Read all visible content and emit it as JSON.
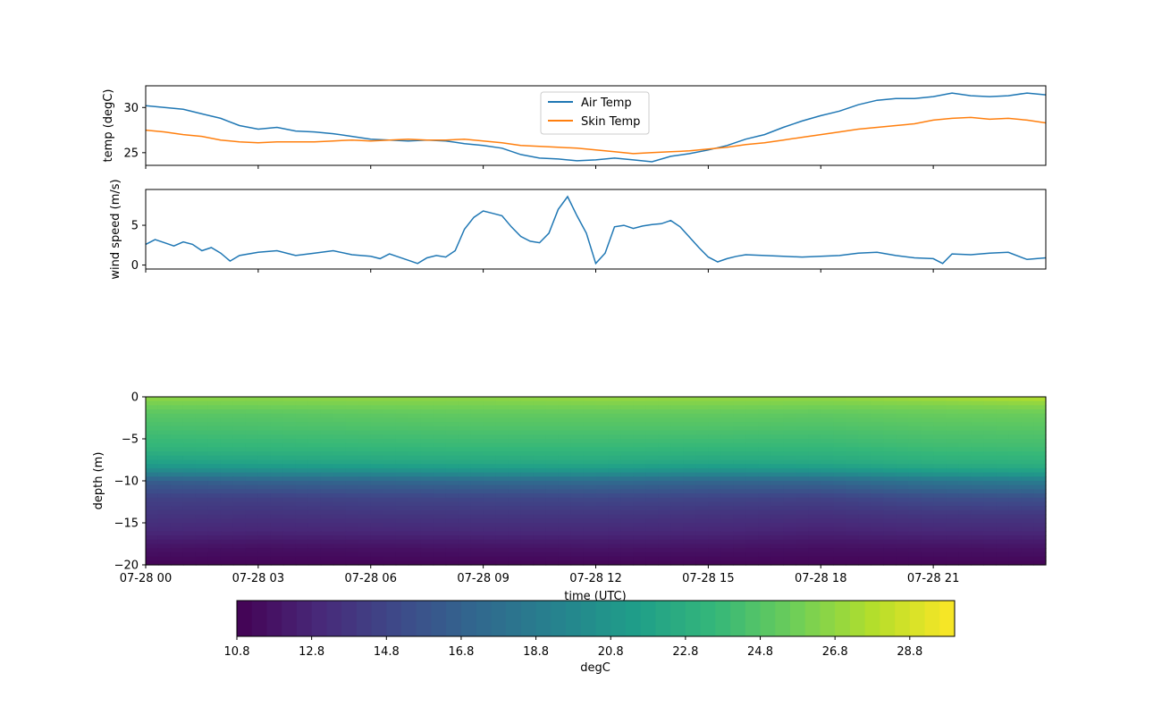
{
  "chart_data": [
    {
      "type": "line",
      "title": "",
      "xlabel": "",
      "ylabel": "temp (degC)",
      "xlim": [
        0,
        24
      ],
      "ylim": [
        23.6,
        32.4
      ],
      "yticks": [
        25,
        30
      ],
      "legend": {
        "placement": "top-center",
        "entries": [
          "Air Temp",
          "Skin Temp"
        ]
      },
      "series": [
        {
          "name": "Air Temp",
          "color": "#1f77b4",
          "x": [
            0,
            0.5,
            1,
            1.5,
            2,
            2.5,
            3,
            3.5,
            4,
            4.5,
            5,
            5.5,
            6,
            6.5,
            7,
            7.5,
            8,
            8.5,
            9,
            9.5,
            10,
            10.5,
            11,
            11.5,
            12,
            12.5,
            13,
            13.5,
            14,
            14.5,
            15,
            15.5,
            16,
            16.5,
            17,
            17.5,
            18,
            18.5,
            19,
            19.5,
            20,
            20.5,
            21,
            21.5,
            22,
            22.5,
            23,
            23.5,
            24
          ],
          "values": [
            30.2,
            30.0,
            29.8,
            29.3,
            28.8,
            28.0,
            27.6,
            27.8,
            27.4,
            27.3,
            27.1,
            26.8,
            26.5,
            26.4,
            26.3,
            26.4,
            26.3,
            26.0,
            25.8,
            25.5,
            24.8,
            24.4,
            24.3,
            24.1,
            24.2,
            24.4,
            24.2,
            24.0,
            24.6,
            24.9,
            25.3,
            25.8,
            26.5,
            27.0,
            27.8,
            28.5,
            29.1,
            29.6,
            30.3,
            30.8,
            31.0,
            31.0,
            31.2,
            31.6,
            31.3,
            31.2,
            31.3,
            31.6,
            31.4
          ]
        },
        {
          "name": "Skin Temp",
          "color": "#ff7f0e",
          "x": [
            0,
            0.5,
            1,
            1.5,
            2,
            2.5,
            3,
            3.5,
            4,
            4.5,
            5,
            5.5,
            6,
            6.5,
            7,
            7.5,
            8,
            8.5,
            9,
            9.5,
            10,
            10.5,
            11,
            11.5,
            12,
            12.5,
            13,
            13.5,
            14,
            14.5,
            15,
            15.5,
            16,
            16.5,
            17,
            17.5,
            18,
            18.5,
            19,
            19.5,
            20,
            20.5,
            21,
            21.5,
            22,
            22.5,
            23,
            23.5,
            24
          ],
          "values": [
            27.5,
            27.3,
            27.0,
            26.8,
            26.4,
            26.2,
            26.1,
            26.2,
            26.2,
            26.2,
            26.3,
            26.4,
            26.3,
            26.4,
            26.5,
            26.4,
            26.4,
            26.5,
            26.3,
            26.1,
            25.8,
            25.7,
            25.6,
            25.5,
            25.3,
            25.1,
            24.9,
            25.0,
            25.1,
            25.2,
            25.4,
            25.6,
            25.9,
            26.1,
            26.4,
            26.7,
            27.0,
            27.3,
            27.6,
            27.8,
            28.0,
            28.2,
            28.6,
            28.8,
            28.9,
            28.7,
            28.8,
            28.6,
            28.3
          ]
        }
      ]
    },
    {
      "type": "line",
      "title": "",
      "xlabel": "",
      "ylabel": "wind speed (m/s)",
      "xlim": [
        0,
        24
      ],
      "ylim": [
        -0.5,
        9.5
      ],
      "yticks": [
        0,
        5
      ],
      "series": [
        {
          "color": "#1f77b4",
          "x": [
            0,
            0.25,
            0.5,
            0.75,
            1,
            1.25,
            1.5,
            1.75,
            2,
            2.25,
            2.5,
            3,
            3.5,
            4,
            4.5,
            5,
            5.5,
            6,
            6.25,
            6.5,
            7,
            7.25,
            7.5,
            7.75,
            8,
            8.25,
            8.5,
            8.75,
            9,
            9.25,
            9.5,
            9.75,
            10,
            10.25,
            10.5,
            10.75,
            11,
            11.25,
            11.5,
            11.75,
            12,
            12.25,
            12.5,
            12.75,
            13,
            13.25,
            13.5,
            13.75,
            14,
            14.25,
            14.5,
            14.75,
            15,
            15.25,
            15.5,
            15.75,
            16,
            16.5,
            17,
            17.5,
            18,
            18.5,
            19,
            19.5,
            20,
            20.5,
            21,
            21.25,
            21.5,
            22,
            22.5,
            23,
            23.5,
            24
          ],
          "values": [
            2.6,
            3.2,
            2.8,
            2.4,
            2.9,
            2.6,
            1.8,
            2.2,
            1.5,
            0.5,
            1.2,
            1.6,
            1.8,
            1.2,
            1.5,
            1.8,
            1.3,
            1.1,
            0.8,
            1.4,
            0.6,
            0.2,
            0.9,
            1.2,
            1.0,
            1.8,
            4.5,
            6.0,
            6.8,
            6.5,
            6.2,
            4.8,
            3.6,
            3.0,
            2.8,
            4.0,
            7.0,
            8.6,
            6.2,
            4.0,
            0.2,
            1.5,
            4.8,
            5.0,
            4.6,
            4.9,
            5.1,
            5.2,
            5.6,
            4.8,
            3.5,
            2.2,
            1.0,
            0.4,
            0.8,
            1.1,
            1.3,
            1.2,
            1.1,
            1.0,
            1.1,
            1.2,
            1.5,
            1.6,
            1.2,
            0.9,
            0.8,
            0.2,
            1.4,
            1.3,
            1.5,
            1.6,
            0.7,
            0.9
          ]
        }
      ]
    },
    {
      "type": "heatmap",
      "title": "",
      "xlabel": "time (UTC)",
      "ylabel": "depth (m)",
      "xlim": [
        0,
        24
      ],
      "ylim": [
        -20,
        0
      ],
      "yticks": [
        0,
        -5,
        -10,
        -15,
        -20
      ],
      "xtick_labels": [
        "07-28 00",
        "07-28 03",
        "07-28 06",
        "07-28 09",
        "07-28 12",
        "07-28 15",
        "07-28 18",
        "07-28 21"
      ],
      "x": [
        0,
        3,
        6,
        9,
        12,
        15,
        18,
        21,
        24
      ],
      "y": [
        0,
        -1,
        -2,
        -4,
        -6,
        -8,
        -9,
        -10,
        -12,
        -14,
        -16,
        -18,
        -20
      ],
      "values": [
        [
          26.8,
          26.6,
          26.8,
          26.7,
          27.0,
          26.9,
          26.8,
          27.4,
          28.0
        ],
        [
          25.8,
          25.9,
          26.0,
          26.0,
          26.1,
          26.1,
          26.0,
          26.2,
          26.5
        ],
        [
          25.0,
          25.0,
          25.2,
          25.3,
          25.3,
          25.3,
          25.2,
          25.5,
          25.6
        ],
        [
          24.2,
          24.3,
          24.4,
          24.5,
          24.5,
          24.5,
          24.4,
          24.7,
          24.8
        ],
        [
          23.4,
          23.5,
          23.6,
          23.7,
          23.7,
          23.6,
          23.6,
          24.0,
          24.1
        ],
        [
          21.5,
          21.8,
          22.0,
          22.2,
          22.3,
          22.0,
          22.2,
          22.8,
          23.0
        ],
        [
          19.5,
          19.8,
          20.0,
          20.4,
          20.5,
          20.0,
          20.3,
          21.2,
          21.6
        ],
        [
          16.5,
          17.0,
          17.2,
          17.5,
          17.6,
          17.2,
          17.3,
          18.4,
          19.0
        ],
        [
          14.6,
          14.5,
          14.8,
          14.9,
          15.0,
          14.8,
          14.6,
          15.4,
          15.6
        ],
        [
          13.8,
          13.6,
          13.8,
          13.9,
          13.9,
          13.7,
          13.5,
          13.9,
          14.0
        ],
        [
          13.0,
          12.8,
          12.9,
          13.0,
          13.0,
          12.9,
          12.6,
          12.9,
          13.0
        ],
        [
          11.8,
          11.6,
          11.7,
          11.8,
          11.9,
          11.8,
          11.6,
          11.7,
          11.8
        ],
        [
          11.0,
          11.0,
          11.0,
          11.0,
          11.0,
          11.0,
          11.0,
          11.0,
          11.0
        ]
      ],
      "colorbar": {
        "label": "degC",
        "range": [
          10.8,
          30.0
        ],
        "tick_labels": [
          "10.8",
          "12.8",
          "14.8",
          "16.8",
          "18.8",
          "20.8",
          "22.8",
          "24.8",
          "26.8",
          "28.8"
        ],
        "colormap": [
          "#440154",
          "#482878",
          "#3e4989",
          "#31688e",
          "#26828e",
          "#1f9e89",
          "#35b779",
          "#6ece58",
          "#b5de2b",
          "#fde725"
        ]
      }
    }
  ]
}
